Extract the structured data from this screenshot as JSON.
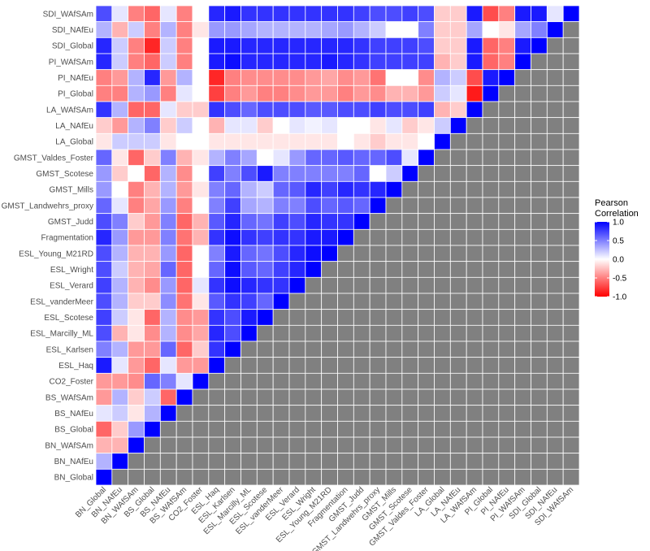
{
  "chart_data": {
    "type": "heatmap",
    "title": "",
    "xlabel": "",
    "ylabel": "",
    "variables": [
      "BN_Global",
      "BN_NAfEu",
      "BN_WAfSAm",
      "BS_Global",
      "BS_NAfEu",
      "BS_WAfSAm",
      "CO2_Foster",
      "ESL_Haq",
      "ESL_Karlsen",
      "ESL_Marcilly_ML",
      "ESL_Scotese",
      "ESL_vanderMeer",
      "ESL_Verard",
      "ESL_Wright",
      "ESL_Young_M21RD",
      "Fragmentation",
      "GMST_Judd",
      "GMST_Landwehrs_proxy",
      "GMST_Mills",
      "GMST_Scotese",
      "GMST_Valdes_Foster",
      "LA_Global",
      "LA_NAfEu",
      "LA_WAfSAm",
      "PI_Global",
      "PI_NAfEu",
      "PI_WAfSAm",
      "SDI_Global",
      "SDI_NAfEu",
      "SDI_WAfSAm"
    ],
    "lower_triangle_fill": "#808080",
    "rows_top_to_bottom": [
      {
        "label": "SDI_WAfSAm",
        "values": [
          0.7,
          0.1,
          -0.5,
          -0.6,
          0.1,
          -0.5,
          0.0,
          0.85,
          0.9,
          0.8,
          0.8,
          0.8,
          0.8,
          0.8,
          0.8,
          0.8,
          0.75,
          0.7,
          0.7,
          0.75,
          0.7,
          -0.2,
          -0.2,
          0.9,
          -0.7,
          -0.5,
          0.9,
          0.9,
          0.1,
          1.0
        ]
      },
      {
        "label": "SDI_NAfEu",
        "values": [
          0.3,
          -0.3,
          0.2,
          -0.5,
          0.3,
          -0.5,
          -0.1,
          0.4,
          0.4,
          0.35,
          0.3,
          0.3,
          0.3,
          0.3,
          0.35,
          0.4,
          0.3,
          0.2,
          0.0,
          0.0,
          0.5,
          -0.2,
          -0.2,
          0.35,
          0.0,
          -0.1,
          0.35,
          0.5,
          1.0
        ]
      },
      {
        "label": "SDI_Global",
        "values": [
          0.85,
          0.2,
          -0.5,
          -0.85,
          0.2,
          -0.5,
          0.0,
          0.9,
          0.9,
          0.85,
          0.85,
          0.85,
          0.85,
          0.85,
          0.85,
          0.85,
          0.8,
          0.75,
          0.75,
          0.75,
          0.7,
          -0.2,
          -0.2,
          0.9,
          -0.6,
          -0.5,
          0.9,
          1.0
        ]
      },
      {
        "label": "PI_WAfSAm",
        "values": [
          0.85,
          0.2,
          -0.5,
          -0.6,
          0.2,
          -0.5,
          0.0,
          0.9,
          0.95,
          0.85,
          0.85,
          0.85,
          0.85,
          0.85,
          0.9,
          0.85,
          0.8,
          0.75,
          0.75,
          0.75,
          0.75,
          -0.3,
          -0.2,
          0.9,
          -0.6,
          -0.5,
          1.0
        ]
      },
      {
        "label": "PI_NAfEu",
        "values": [
          -0.5,
          -0.4,
          0.3,
          0.85,
          -0.4,
          0.3,
          0.0,
          -0.85,
          -0.5,
          -0.45,
          -0.45,
          -0.45,
          -0.45,
          -0.4,
          -0.35,
          -0.45,
          -0.4,
          -0.55,
          0.0,
          0.0,
          -0.45,
          0.3,
          0.2,
          -0.7,
          0.9,
          1.0
        ]
      },
      {
        "label": "PI_Global",
        "values": [
          -0.5,
          -0.5,
          0.3,
          0.4,
          -0.5,
          0.1,
          0.0,
          -0.75,
          -0.5,
          -0.4,
          -0.5,
          -0.5,
          -0.45,
          -0.4,
          -0.4,
          -0.5,
          -0.4,
          -0.45,
          -0.3,
          -0.3,
          -0.4,
          0.2,
          0.1,
          -0.9,
          1.0
        ]
      },
      {
        "label": "LA_WAfSAm",
        "values": [
          0.8,
          0.3,
          -0.6,
          -0.6,
          0.1,
          -0.2,
          -0.2,
          0.8,
          0.7,
          0.6,
          0.7,
          0.7,
          0.7,
          0.65,
          0.65,
          0.7,
          0.7,
          0.75,
          0.7,
          0.7,
          0.75,
          -0.3,
          -0.2,
          1.0
        ]
      },
      {
        "label": "LA_NAfEu",
        "values": [
          -0.2,
          -0.4,
          0.3,
          0.5,
          -0.2,
          0.2,
          0.0,
          -0.3,
          0.1,
          0.1,
          -0.2,
          0.0,
          0.1,
          0.05,
          0.1,
          0.0,
          0.0,
          -0.1,
          0.1,
          -0.2,
          -0.1,
          0.2,
          1.0
        ]
      },
      {
        "label": "LA_Global",
        "values": [
          -0.1,
          0.2,
          0.2,
          0.2,
          -0.1,
          0.0,
          0.0,
          -0.1,
          -0.1,
          -0.1,
          -0.1,
          -0.1,
          -0.1,
          -0.1,
          -0.1,
          0.0,
          -0.1,
          -0.2,
          -0.1,
          -0.1,
          0.0,
          1.0
        ]
      },
      {
        "label": "GMST_Valdes_Foster",
        "values": [
          0.6,
          -0.1,
          -0.6,
          -0.2,
          0.5,
          -0.3,
          -0.1,
          0.3,
          0.5,
          0.35,
          0.0,
          0.1,
          0.4,
          0.6,
          0.6,
          0.65,
          0.6,
          0.6,
          0.7,
          0.1,
          1.0
        ]
      },
      {
        "label": "GMST_Scotese",
        "values": [
          0.4,
          -0.2,
          0.0,
          -0.6,
          0.3,
          -0.45,
          0.0,
          0.75,
          0.5,
          0.7,
          0.9,
          0.5,
          0.5,
          0.5,
          0.5,
          0.5,
          0.6,
          0.0,
          0.2,
          1.0
        ]
      },
      {
        "label": "GMST_Mills",
        "values": [
          0.4,
          0.0,
          -0.5,
          -0.3,
          0.3,
          -0.4,
          -0.1,
          0.5,
          0.6,
          0.3,
          0.2,
          0.6,
          0.65,
          0.85,
          0.75,
          0.85,
          0.8,
          0.85,
          1.0
        ]
      },
      {
        "label": "GMST_Landwehrs_proxy",
        "values": [
          0.6,
          0.1,
          -0.5,
          -0.35,
          0.4,
          -0.5,
          0.0,
          0.5,
          0.75,
          0.35,
          0.3,
          0.5,
          0.5,
          0.7,
          0.6,
          0.65,
          0.6,
          1.0
        ]
      },
      {
        "label": "GMST_Judd",
        "values": [
          0.7,
          0.5,
          -0.2,
          -0.4,
          0.5,
          -0.6,
          -0.3,
          0.65,
          0.85,
          0.6,
          0.55,
          0.75,
          0.7,
          0.85,
          0.8,
          0.8,
          1.0
        ]
      },
      {
        "label": "Fragmentation",
        "values": [
          0.85,
          0.4,
          -0.4,
          -0.4,
          0.5,
          -0.55,
          -0.3,
          0.8,
          0.95,
          0.8,
          0.75,
          0.8,
          0.8,
          0.9,
          0.9,
          1.0
        ]
      },
      {
        "label": "ESL_Young_M21RD",
        "values": [
          0.7,
          0.3,
          -0.3,
          -0.3,
          0.4,
          -0.6,
          0.0,
          0.5,
          0.9,
          0.6,
          0.55,
          0.7,
          0.85,
          0.95,
          1.0
        ]
      },
      {
        "label": "ESL_Wright",
        "values": [
          0.7,
          0.2,
          -0.3,
          -0.35,
          0.6,
          -0.6,
          0.0,
          0.6,
          0.95,
          0.65,
          0.6,
          0.75,
          0.85,
          1.0
        ]
      },
      {
        "label": "ESL_Verard",
        "values": [
          0.75,
          0.3,
          -0.3,
          -0.45,
          0.4,
          -0.6,
          0.1,
          0.8,
          0.95,
          0.85,
          0.8,
          0.8,
          1.0
        ]
      },
      {
        "label": "ESL_vanderMeer",
        "values": [
          0.7,
          0.3,
          -0.2,
          -0.2,
          0.45,
          -0.55,
          -0.1,
          0.65,
          0.8,
          0.75,
          0.6,
          1.0
        ]
      },
      {
        "label": "ESL_Scotese",
        "values": [
          0.75,
          0.2,
          -0.1,
          -0.6,
          0.3,
          -0.45,
          -0.4,
          0.8,
          0.7,
          0.9,
          1.0
        ]
      },
      {
        "label": "ESL_Marcilly_ML",
        "values": [
          0.7,
          -0.3,
          -0.1,
          -0.45,
          0.3,
          -0.45,
          -0.35,
          0.85,
          0.7,
          1.0
        ]
      },
      {
        "label": "ESL_Karlsen",
        "values": [
          0.5,
          0.3,
          -0.4,
          -0.4,
          0.6,
          -0.6,
          -0.2,
          0.8,
          1.0
        ]
      },
      {
        "label": "ESL_Haq",
        "values": [
          0.9,
          0.1,
          -0.4,
          -0.6,
          0.1,
          -0.4,
          -0.4,
          1.0
        ]
      },
      {
        "label": "CO2_Foster",
        "values": [
          -0.4,
          -0.4,
          -0.45,
          0.6,
          0.5,
          0.1,
          1.0
        ]
      },
      {
        "label": "BS_WAfSAm",
        "values": [
          -0.4,
          0.3,
          -0.2,
          0.2,
          -0.6,
          1.0
        ]
      },
      {
        "label": "BS_NAfEu",
        "values": [
          0.1,
          0.2,
          -0.1,
          0.3,
          1.0
        ]
      },
      {
        "label": "BS_Global",
        "values": [
          -0.6,
          -0.2,
          0.4,
          1.0
        ]
      },
      {
        "label": "BN_WAfSAm",
        "values": [
          -0.3,
          -0.3,
          1.0
        ]
      },
      {
        "label": "BN_NAfEu",
        "values": [
          0.3,
          1.0
        ]
      },
      {
        "label": "BN_Global",
        "values": [
          1.0
        ]
      }
    ],
    "color_scale": {
      "low": "#ff0000",
      "mid": "#ffffff",
      "high": "#0000ff",
      "min": -1.0,
      "max": 1.0
    },
    "legend": {
      "title_lines": [
        "Pearson",
        "Correlation"
      ],
      "ticks": [
        "1.0",
        "0.5",
        "0.0",
        "-0.5",
        "-1.0"
      ],
      "tick_values": [
        1.0,
        0.5,
        0.0,
        -0.5,
        -1.0
      ],
      "placement": "right"
    }
  }
}
